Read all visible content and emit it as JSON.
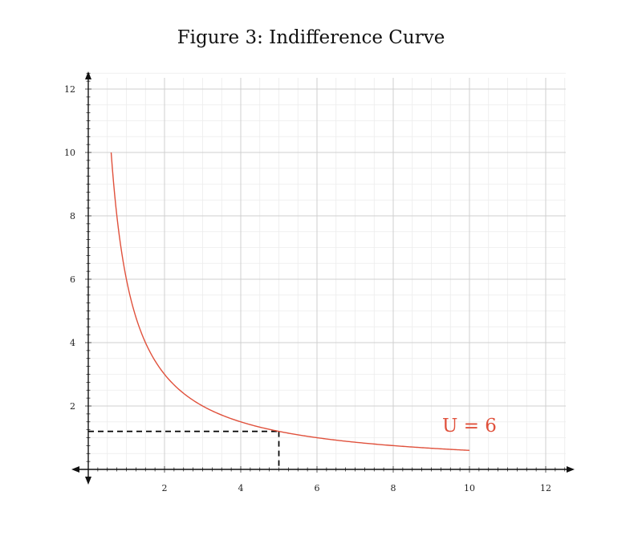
{
  "colors": {
    "curve": "#e0513c",
    "axis": "#111111",
    "grid_major": "#cfcfcf",
    "grid_minor": "#ececec",
    "guide": "#000000"
  },
  "chart_data": {
    "type": "line",
    "title": "Figure 3: Indifference Curve",
    "xlabel": "",
    "ylabel": "",
    "xlim": [
      0,
      12.5
    ],
    "ylim": [
      0,
      12.5
    ],
    "grid": true,
    "x_ticks": [
      2,
      4,
      6,
      8,
      10,
      12
    ],
    "y_ticks": [
      2,
      4,
      6,
      8,
      10,
      12
    ],
    "x_tick_labels": [
      "2",
      "4",
      "6",
      "8",
      "10",
      "12"
    ],
    "y_tick_labels": [
      "2",
      "4",
      "6",
      "8",
      "10",
      "12"
    ],
    "series": [
      {
        "name": "U = 6",
        "function": "y = 6 / x",
        "x_range": [
          0.6,
          10
        ],
        "x": [
          0.6,
          0.75,
          1,
          1.5,
          2,
          3,
          4,
          5,
          6,
          7,
          8,
          9,
          10
        ],
        "y": [
          10,
          8,
          6,
          4,
          3,
          2,
          1.5,
          1.2,
          1,
          0.857,
          0.75,
          0.667,
          0.6
        ]
      }
    ],
    "annotations": [
      {
        "type": "guide_lines",
        "style": "dashed",
        "x": 5,
        "y": 1.2
      },
      {
        "type": "label",
        "text": "U = 6",
        "series": "U = 6"
      }
    ]
  }
}
